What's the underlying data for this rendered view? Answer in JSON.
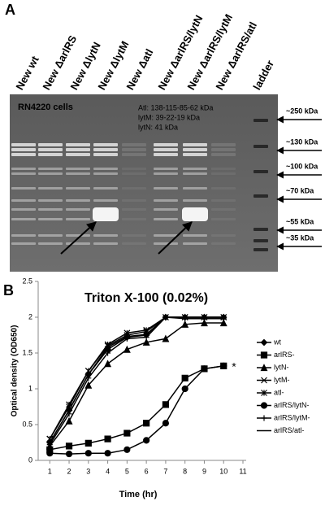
{
  "panel_a": {
    "label": "A",
    "lanes": [
      "New wt",
      "New ΔarlRS",
      "New ΔlytN",
      "New ΔlytM",
      "New Δatl",
      "New ΔarlRS/lytN",
      "New ΔarlRS/lytM",
      "New ΔarlRS/atl",
      "ladder"
    ],
    "caption": "RN4220 cells",
    "notes": [
      "Atl: 138-115-85-62 kDa",
      "lytM: 39-22-19 kDa",
      "lytN: 41 kDa"
    ],
    "size_markers": [
      "~250 kDa",
      "~130 kDa",
      "~100 kDa",
      "~70 kDa",
      "~55 kDa",
      "~35 kDa"
    ]
  },
  "chart_data": {
    "type": "line",
    "panel_label": "B",
    "title": "Triton X-100 (0.02%)",
    "x_label": "Time (hr)",
    "y_label": "Optical density (OD650)",
    "x": [
      1,
      2,
      3,
      4,
      5,
      6,
      7,
      8,
      9,
      10
    ],
    "xlim": [
      0.4,
      11
    ],
    "xticks": [
      1,
      2,
      3,
      4,
      5,
      6,
      7,
      8,
      9,
      10,
      11
    ],
    "ylim": [
      0,
      2.5
    ],
    "yticks": [
      0,
      0.5,
      1,
      1.5,
      2,
      2.5
    ],
    "annotation": "*",
    "series": [
      {
        "name": "wt",
        "color": "#000000",
        "marker": "diamond",
        "values": [
          0.25,
          0.7,
          1.2,
          1.55,
          1.72,
          1.75,
          2.0,
          2.0,
          2.0,
          2.0
        ]
      },
      {
        "name": "arlRS-",
        "color": "#000000",
        "marker": "square",
        "values": [
          0.15,
          0.2,
          0.24,
          0.3,
          0.38,
          0.52,
          0.78,
          1.15,
          1.28,
          1.32
        ]
      },
      {
        "name": "lytN-",
        "color": "#000000",
        "marker": "triangle",
        "values": [
          0.2,
          0.55,
          1.05,
          1.35,
          1.55,
          1.65,
          1.7,
          1.9,
          1.92,
          1.92
        ]
      },
      {
        "name": "lytM-",
        "color": "#000000",
        "marker": "x",
        "values": [
          0.3,
          0.75,
          1.25,
          1.6,
          1.75,
          1.8,
          2.0,
          2.0,
          2.0,
          2.0
        ]
      },
      {
        "name": "atl-",
        "color": "#000000",
        "marker": "asterisk",
        "values": [
          0.3,
          0.78,
          1.25,
          1.62,
          1.78,
          1.82,
          2.0,
          2.0,
          2.0,
          2.0
        ]
      },
      {
        "name": "arlRS/lytN-",
        "color": "#000000",
        "marker": "circle",
        "values": [
          0.1,
          0.09,
          0.1,
          0.1,
          0.15,
          0.28,
          0.52,
          1.0,
          1.28,
          1.32
        ]
      },
      {
        "name": "arlRS/lytM-",
        "color": "#000000",
        "marker": "plus",
        "values": [
          0.22,
          0.65,
          1.15,
          1.5,
          1.7,
          1.72,
          2.0,
          1.98,
          1.98,
          1.98
        ]
      },
      {
        "name": "arlRS/atl-",
        "color": "#000000",
        "marker": "none",
        "values": [
          0.25,
          0.7,
          1.2,
          1.58,
          1.73,
          1.76,
          2.0,
          2.0,
          2.0,
          2.0
        ]
      }
    ]
  }
}
